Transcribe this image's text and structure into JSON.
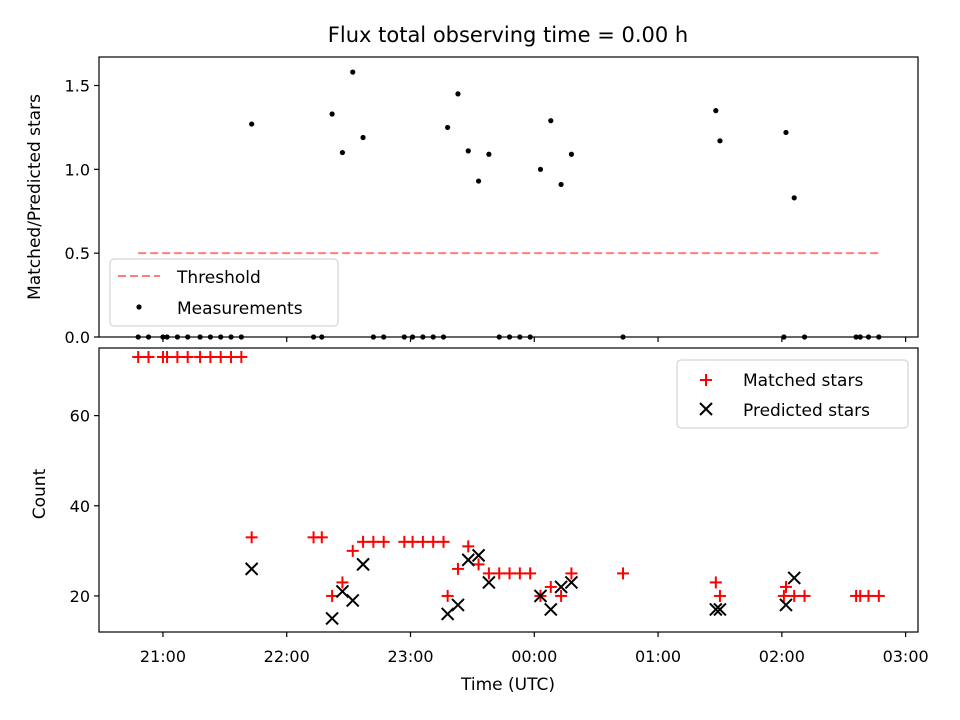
{
  "title": "Flux total observing time = 0.00 h",
  "colors": {
    "matched": "#ff0000",
    "predicted": "#000000",
    "measurements": "#000000",
    "threshold": "#ff7f7f"
  },
  "chart_data": [
    {
      "type": "scatter",
      "panel": "top",
      "xlabel": "",
      "ylabel": "Matched/Predicted stars",
      "xlim": [
        "20:29",
        "03:06"
      ],
      "ylim": [
        0,
        1.67
      ],
      "yticks": [
        "0.0",
        "0.5",
        "1.0",
        "1.5"
      ],
      "grid": false,
      "legend_position": "lower-left",
      "threshold": {
        "name": "Threshold",
        "y": 0.5,
        "x_range": [
          "20:48",
          "02:47"
        ]
      },
      "series": [
        {
          "name": "Measurements",
          "marker": "dot",
          "points": [
            [
              "20:48",
              0
            ],
            [
              "20:53",
              0
            ],
            [
              "21:00",
              0
            ],
            [
              "21:02",
              0
            ],
            [
              "21:07",
              0
            ],
            [
              "21:12",
              0
            ],
            [
              "21:18",
              0
            ],
            [
              "21:23",
              0
            ],
            [
              "21:28",
              0
            ],
            [
              "21:33",
              0
            ],
            [
              "21:38",
              0
            ],
            [
              "21:43",
              1.27
            ],
            [
              "22:13",
              0
            ],
            [
              "22:17",
              0
            ],
            [
              "22:22",
              1.33
            ],
            [
              "22:27",
              1.1
            ],
            [
              "22:32",
              1.58
            ],
            [
              "22:37",
              1.19
            ],
            [
              "22:42",
              0
            ],
            [
              "22:47",
              0
            ],
            [
              "22:57",
              0
            ],
            [
              "23:01",
              0
            ],
            [
              "23:06",
              0
            ],
            [
              "23:11",
              0
            ],
            [
              "23:16",
              0
            ],
            [
              "23:18",
              1.25
            ],
            [
              "23:23",
              1.45
            ],
            [
              "23:28",
              1.11
            ],
            [
              "23:33",
              0.93
            ],
            [
              "23:38",
              1.09
            ],
            [
              "23:43",
              0
            ],
            [
              "23:48",
              0
            ],
            [
              "23:53",
              0
            ],
            [
              "23:58",
              0
            ],
            [
              "00:03",
              1.0
            ],
            [
              "00:08",
              1.29
            ],
            [
              "00:13",
              0.91
            ],
            [
              "00:18",
              1.09
            ],
            [
              "00:43",
              0
            ],
            [
              "01:28",
              1.35
            ],
            [
              "01:30",
              1.17
            ],
            [
              "02:01",
              0
            ],
            [
              "02:02",
              1.22
            ],
            [
              "02:06",
              0.83
            ],
            [
              "02:11",
              0
            ],
            [
              "02:36",
              0
            ],
            [
              "02:38",
              0
            ],
            [
              "02:42",
              0
            ],
            [
              "02:47",
              0
            ]
          ]
        }
      ]
    },
    {
      "type": "scatter",
      "panel": "bottom",
      "xlabel": "Time (UTC)",
      "ylabel": "Count",
      "xlim": [
        "20:29",
        "03:06"
      ],
      "ylim": [
        12,
        75
      ],
      "yticks": [
        "20",
        "40",
        "60"
      ],
      "xticks": [
        "21:00",
        "22:00",
        "23:00",
        "00:00",
        "01:00",
        "02:00",
        "03:00"
      ],
      "grid": false,
      "legend_position": "upper-right",
      "series": [
        {
          "name": "Matched stars",
          "marker": "plus",
          "points": [
            [
              "20:48",
              73
            ],
            [
              "20:53",
              73
            ],
            [
              "21:00",
              73
            ],
            [
              "21:02",
              73
            ],
            [
              "21:07",
              73
            ],
            [
              "21:12",
              73
            ],
            [
              "21:18",
              73
            ],
            [
              "21:23",
              73
            ],
            [
              "21:28",
              73
            ],
            [
              "21:33",
              73
            ],
            [
              "21:38",
              73
            ],
            [
              "21:43",
              33
            ],
            [
              "22:13",
              33
            ],
            [
              "22:17",
              33
            ],
            [
              "22:22",
              20
            ],
            [
              "22:27",
              23
            ],
            [
              "22:32",
              30
            ],
            [
              "22:37",
              32
            ],
            [
              "22:42",
              32
            ],
            [
              "22:47",
              32
            ],
            [
              "22:57",
              32
            ],
            [
              "23:01",
              32
            ],
            [
              "23:06",
              32
            ],
            [
              "23:11",
              32
            ],
            [
              "23:16",
              32
            ],
            [
              "23:18",
              20
            ],
            [
              "23:23",
              26
            ],
            [
              "23:28",
              31
            ],
            [
              "23:33",
              27
            ],
            [
              "23:38",
              25
            ],
            [
              "23:43",
              25
            ],
            [
              "23:48",
              25
            ],
            [
              "23:53",
              25
            ],
            [
              "23:58",
              25
            ],
            [
              "00:03",
              20
            ],
            [
              "00:08",
              22
            ],
            [
              "00:13",
              20
            ],
            [
              "00:18",
              25
            ],
            [
              "00:43",
              25
            ],
            [
              "01:28",
              23
            ],
            [
              "01:30",
              20
            ],
            [
              "02:01",
              20
            ],
            [
              "02:02",
              22
            ],
            [
              "02:06",
              20
            ],
            [
              "02:11",
              20
            ],
            [
              "02:36",
              20
            ],
            [
              "02:38",
              20
            ],
            [
              "02:42",
              20
            ],
            [
              "02:47",
              20
            ]
          ]
        },
        {
          "name": "Predicted stars",
          "marker": "x",
          "points": [
            [
              "21:43",
              26
            ],
            [
              "22:22",
              15
            ],
            [
              "22:27",
              21
            ],
            [
              "22:32",
              19
            ],
            [
              "22:37",
              27
            ],
            [
              "23:18",
              16
            ],
            [
              "23:23",
              18
            ],
            [
              "23:28",
              28
            ],
            [
              "23:33",
              29
            ],
            [
              "23:38",
              23
            ],
            [
              "00:03",
              20
            ],
            [
              "00:08",
              17
            ],
            [
              "00:13",
              22
            ],
            [
              "00:18",
              23
            ],
            [
              "01:28",
              17
            ],
            [
              "01:30",
              17
            ],
            [
              "02:02",
              18
            ],
            [
              "02:06",
              24
            ]
          ]
        }
      ]
    }
  ]
}
